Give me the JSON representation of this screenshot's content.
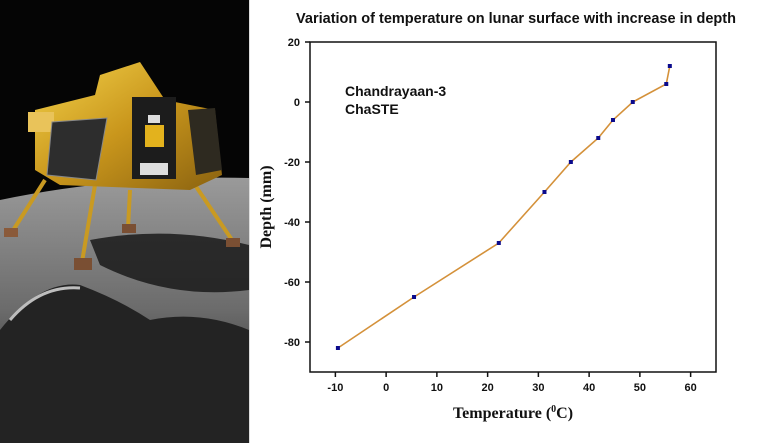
{
  "photo": {
    "subject": "lunar-lander-on-moon-surface"
  },
  "chart_data": {
    "type": "line",
    "title": "Variation of temperature on lunar surface with increase in depth",
    "xlabel": "Temperature (",
    "xlabel_sup": "0",
    "xlabel_end": "C)",
    "ylabel": "Depth (mm)",
    "annotation": [
      "Chandrayaan-3",
      "ChaSTE"
    ],
    "xlim": [
      -15,
      65
    ],
    "ylim": [
      -90,
      20
    ],
    "xticks": [
      -10,
      0,
      10,
      20,
      30,
      40,
      50,
      60
    ],
    "yticks": [
      20,
      0,
      -20,
      -40,
      -60,
      -80
    ],
    "grid": false,
    "line_color": "#d4913a",
    "marker_color": "#0a0a8c",
    "x": [
      -9.5,
      5.5,
      22.2,
      31.2,
      36.4,
      41.8,
      44.7,
      48.6,
      55.2,
      55.9
    ],
    "y": [
      -82,
      -65,
      -47,
      -30,
      -20,
      -12,
      -6,
      0,
      6,
      12
    ]
  }
}
